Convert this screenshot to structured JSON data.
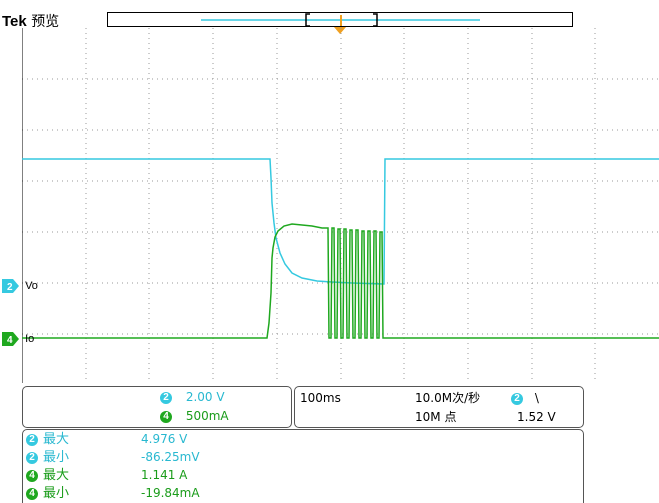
{
  "header": {
    "brand": "Tek",
    "mode": "预览"
  },
  "channels": {
    "ch2": {
      "number": "2",
      "color": "#35c9e0",
      "marker_label": "Vo",
      "scale": "2.00 V"
    },
    "ch4": {
      "number": "4",
      "color": "#1fa81f",
      "marker_label": "Io",
      "scale": "500mA"
    }
  },
  "timebase": {
    "scale": "100ms",
    "sample_rate": "10.0M次/秒",
    "record_length": "10M 点"
  },
  "trigger": {
    "source": "2",
    "slope": "\\",
    "level": "1.52 V"
  },
  "measurements": [
    {
      "channel": "2",
      "label": "最大",
      "value": "4.976 V"
    },
    {
      "channel": "2",
      "label": "最小",
      "value": "-86.25mV"
    },
    {
      "channel": "4",
      "label": "最大",
      "value": "1.141 A"
    },
    {
      "channel": "4",
      "label": "最小",
      "value": "-19.84mA"
    }
  ]
}
